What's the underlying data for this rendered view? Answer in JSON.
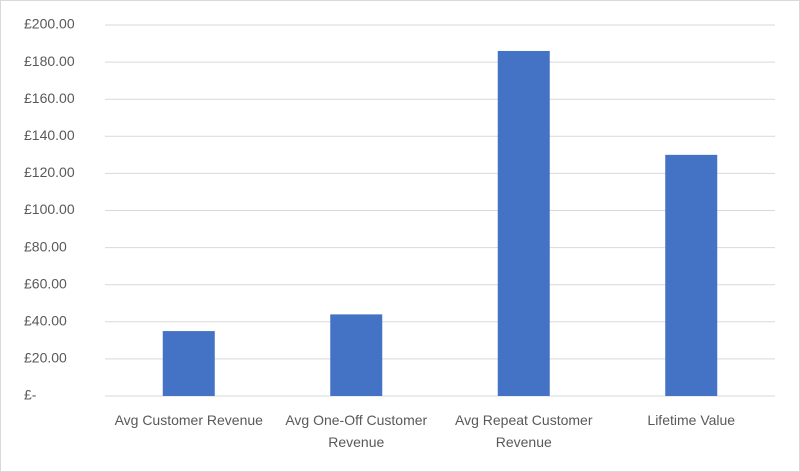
{
  "chart_data": {
    "type": "bar",
    "categories": [
      "Avg Customer Revenue",
      "Avg One-Off Customer Revenue",
      "Avg Repeat Customer Revenue",
      "Lifetime Value"
    ],
    "values": [
      35,
      44,
      186,
      130
    ],
    "color": "#4472c4",
    "ylim": [
      0,
      200
    ],
    "yticks": [
      {
        "value": 0,
        "label": "£-"
      },
      {
        "value": 20,
        "label": "£20.00"
      },
      {
        "value": 40,
        "label": "£40.00"
      },
      {
        "value": 60,
        "label": "£60.00"
      },
      {
        "value": 80,
        "label": "£80.00"
      },
      {
        "value": 100,
        "label": "£100.00"
      },
      {
        "value": 120,
        "label": "£120.00"
      },
      {
        "value": 140,
        "label": "£140.00"
      },
      {
        "value": 160,
        "label": "£160.00"
      },
      {
        "value": 180,
        "label": "£180.00"
      },
      {
        "value": 200,
        "label": "£200.00"
      }
    ],
    "grid": true
  }
}
